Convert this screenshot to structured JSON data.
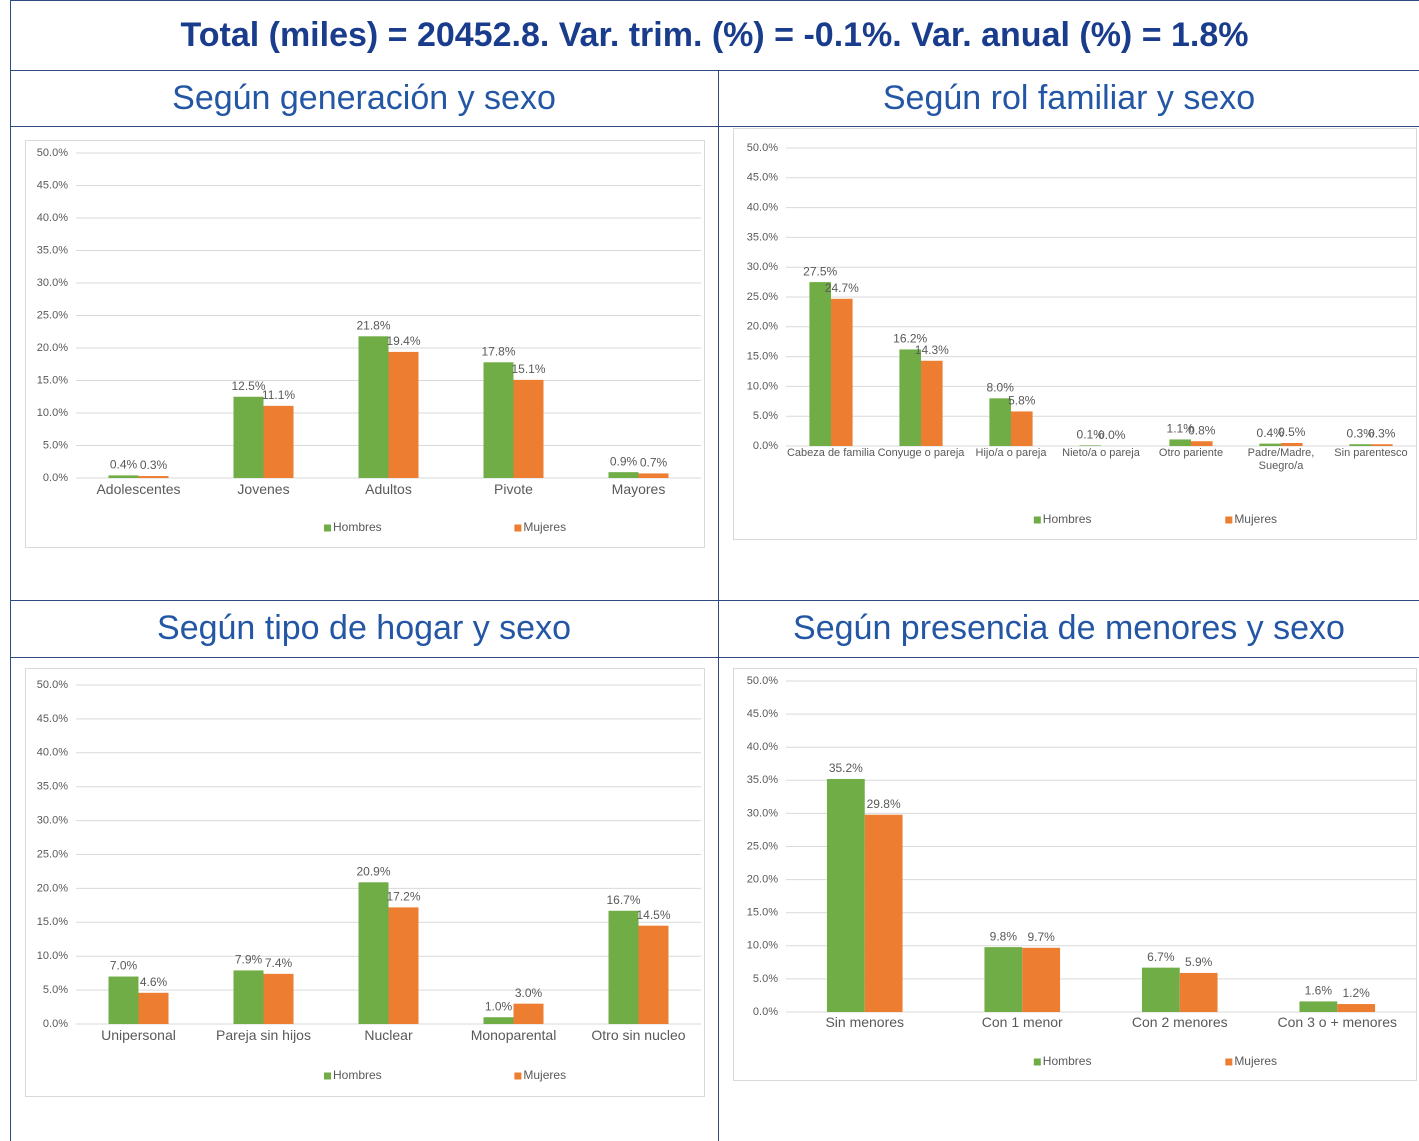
{
  "title": "Total (miles) = 20452.8. Var. trim. (%) = -0.1%. Var. anual (%) = 1.8%",
  "chart_data": [
    {
      "type": "bar",
      "title": "Según generación y sexo",
      "categories": [
        "Adolescentes",
        "Jovenes",
        "Adultos",
        "Pivote",
        "Mayores"
      ],
      "series": [
        {
          "name": "Hombres",
          "color": "#70ad47",
          "values": [
            0.4,
            12.5,
            21.8,
            17.8,
            0.9
          ],
          "value_labels": [
            "0.4%",
            "12.5%",
            "21.8%",
            "17.8%",
            "0.9%"
          ]
        },
        {
          "name": "Mujeres",
          "color": "#ed7d31",
          "values": [
            0.3,
            11.1,
            19.4,
            15.1,
            0.7
          ],
          "value_labels": [
            "0.3%",
            "11.1%",
            "19.4%",
            "15.1%",
            "0.7%"
          ]
        }
      ],
      "ylim": [
        0,
        50
      ],
      "yticks": [
        {
          "value": 0,
          "label": "0.0%"
        },
        {
          "value": 5,
          "label": "5.0%"
        },
        {
          "value": 10,
          "label": "10.0%"
        },
        {
          "value": 15,
          "label": "15.0%"
        },
        {
          "value": 20,
          "label": "20.0%"
        },
        {
          "value": 25,
          "label": "25.0%"
        },
        {
          "value": 30,
          "label": "30.0%"
        },
        {
          "value": 35,
          "label": "35.0%"
        },
        {
          "value": 40,
          "label": "40.0%"
        },
        {
          "value": 45,
          "label": "45.0%"
        },
        {
          "value": 50,
          "label": "50.0%"
        }
      ],
      "grid": true,
      "legend": "bottom"
    },
    {
      "type": "bar",
      "title": "Según rol familiar y sexo",
      "categories": [
        "Cabeza de familia",
        "Conyuge o pareja",
        "Hijo/a o pareja",
        "Nieto/a o pareja",
        "Otro pariente",
        "Padre/Madre, Suegro/a",
        "Sin parentesco"
      ],
      "series": [
        {
          "name": "Hombres",
          "color": "#70ad47",
          "values": [
            27.5,
            16.2,
            8.0,
            0.1,
            1.1,
            0.4,
            0.3
          ],
          "value_labels": [
            "27.5%",
            "16.2%",
            "8.0%",
            "0.1%",
            "1.1%",
            "0.4%",
            "0.3%"
          ]
        },
        {
          "name": "Mujeres",
          "color": "#ed7d31",
          "values": [
            24.7,
            14.3,
            5.8,
            0.0,
            0.8,
            0.5,
            0.3
          ],
          "value_labels": [
            "24.7%",
            "14.3%",
            "5.8%",
            "0.0%",
            "0.8%",
            "0.5%",
            "0.3%"
          ]
        }
      ],
      "ylim": [
        0,
        50
      ],
      "yticks": [
        {
          "value": 0,
          "label": "0.0%"
        },
        {
          "value": 5,
          "label": "5.0%"
        },
        {
          "value": 10,
          "label": "10.0%"
        },
        {
          "value": 15,
          "label": "15.0%"
        },
        {
          "value": 20,
          "label": "20.0%"
        },
        {
          "value": 25,
          "label": "25.0%"
        },
        {
          "value": 30,
          "label": "30.0%"
        },
        {
          "value": 35,
          "label": "35.0%"
        },
        {
          "value": 40,
          "label": "40.0%"
        },
        {
          "value": 45,
          "label": "45.0%"
        },
        {
          "value": 50,
          "label": "50.0%"
        }
      ],
      "grid": true,
      "legend": "bottom"
    },
    {
      "type": "bar",
      "title": "Según tipo de hogar y sexo",
      "categories": [
        "Unipersonal",
        "Pareja sin hijos",
        "Nuclear",
        "Monoparental",
        "Otro sin nucleo"
      ],
      "series": [
        {
          "name": "Hombres",
          "color": "#70ad47",
          "values": [
            7.0,
            7.9,
            20.9,
            1.0,
            16.7
          ],
          "value_labels": [
            "7.0%",
            "7.9%",
            "20.9%",
            "1.0%",
            "16.7%"
          ]
        },
        {
          "name": "Mujeres",
          "color": "#ed7d31",
          "values": [
            4.6,
            7.4,
            17.2,
            3.0,
            14.5
          ],
          "value_labels": [
            "4.6%",
            "7.4%",
            "17.2%",
            "3.0%",
            "14.5%"
          ]
        }
      ],
      "ylim": [
        0,
        50
      ],
      "yticks": [
        {
          "value": 0,
          "label": "0.0%"
        },
        {
          "value": 5,
          "label": "5.0%"
        },
        {
          "value": 10,
          "label": "10.0%"
        },
        {
          "value": 15,
          "label": "15.0%"
        },
        {
          "value": 20,
          "label": "20.0%"
        },
        {
          "value": 25,
          "label": "25.0%"
        },
        {
          "value": 30,
          "label": "30.0%"
        },
        {
          "value": 35,
          "label": "35.0%"
        },
        {
          "value": 40,
          "label": "40.0%"
        },
        {
          "value": 45,
          "label": "45.0%"
        },
        {
          "value": 50,
          "label": "50.0%"
        }
      ],
      "grid": true,
      "legend": "bottom"
    },
    {
      "type": "bar",
      "title": "Según presencia de menores y sexo",
      "categories": [
        "Sin menores",
        "Con 1 menor",
        "Con 2 menores",
        "Con 3 o + menores"
      ],
      "series": [
        {
          "name": "Hombres",
          "color": "#70ad47",
          "values": [
            35.2,
            9.8,
            6.7,
            1.6
          ],
          "value_labels": [
            "35.2%",
            "9.8%",
            "6.7%",
            "1.6%"
          ]
        },
        {
          "name": "Mujeres",
          "color": "#ed7d31",
          "values": [
            29.8,
            9.7,
            5.9,
            1.2
          ],
          "value_labels": [
            "29.8%",
            "9.7%",
            "5.9%",
            "1.2%"
          ]
        }
      ],
      "ylim": [
        0,
        50
      ],
      "yticks": [
        {
          "value": 0,
          "label": "0.0%"
        },
        {
          "value": 5,
          "label": "5.0%"
        },
        {
          "value": 10,
          "label": "10.0%"
        },
        {
          "value": 15,
          "label": "15.0%"
        },
        {
          "value": 20,
          "label": "20.0%"
        },
        {
          "value": 25,
          "label": "25.0%"
        },
        {
          "value": 30,
          "label": "30.0%"
        },
        {
          "value": 35,
          "label": "35.0%"
        },
        {
          "value": 40,
          "label": "40.0%"
        },
        {
          "value": 45,
          "label": "45.0%"
        },
        {
          "value": 50,
          "label": "50.0%"
        }
      ],
      "grid": true,
      "legend": "bottom"
    }
  ]
}
